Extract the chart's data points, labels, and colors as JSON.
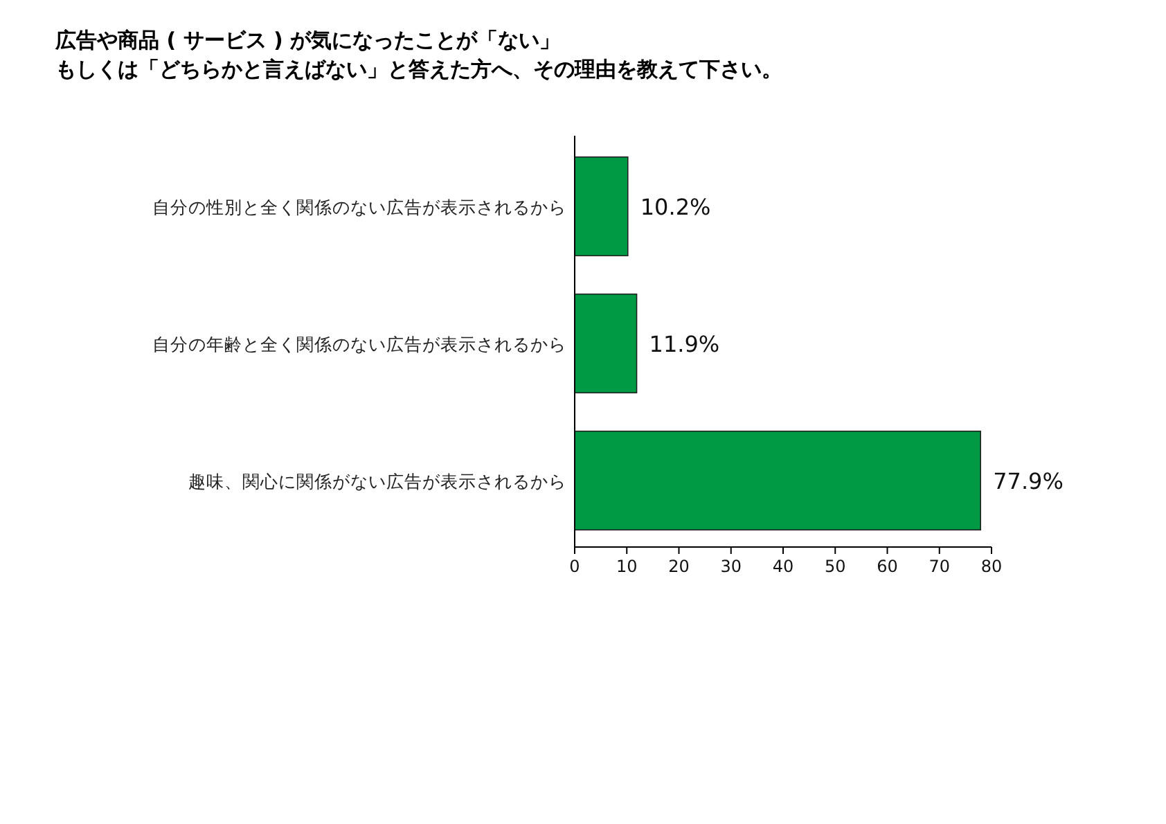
{
  "chart_data": {
    "type": "bar",
    "orientation": "horizontal",
    "title": "広告や商品 ( サービス ) が気になったことが「ない」",
    "subtitle": "もしくは「どちらかと言えばない」と答えた方へ、その理由を教えて下さい。",
    "categories": [
      "自分の性別と全く関係のない広告が表示されるから",
      "自分の年齢と全く関係のない広告が表示されるから",
      "趣味、関心に関係がない広告が表示されるから"
    ],
    "values": [
      10.2,
      11.9,
      77.9
    ],
    "value_labels": [
      "10.2%",
      "11.9%",
      "77.9%"
    ],
    "color": "#009a44",
    "xlim": [
      0,
      80
    ],
    "xticks": [
      0,
      10,
      20,
      30,
      40,
      50,
      60,
      70,
      80
    ],
    "grid": false
  }
}
